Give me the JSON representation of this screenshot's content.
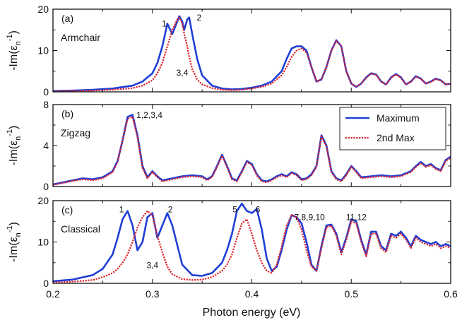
{
  "chart_data": {
    "type": "line",
    "xlabel": "Photon energy (eV)",
    "xlim": [
      0.2,
      0.6
    ],
    "xticks": [
      0.2,
      0.3,
      0.4,
      0.5,
      0.6
    ],
    "xtick_labels": [
      "0.2",
      "0.3",
      "0.4",
      "0.5",
      "0.6"
    ],
    "ylabel_prefix": "-Im(ε",
    "ylabel_sub": "n",
    "ylabel_sup": "-1",
    "ylabel_suffix": ")",
    "legend": {
      "position": "middle-right",
      "entries": [
        {
          "name": "Maximum",
          "color": "#1f3fd6",
          "style": "solid"
        },
        {
          "name": "2nd Max",
          "color": "#e0202a",
          "style": "dotted"
        }
      ]
    },
    "panels": [
      {
        "id": "a",
        "tag": "(a)",
        "name": "Armchair",
        "ylim": [
          0,
          20
        ],
        "yticks": [
          0,
          10,
          20
        ],
        "ytick_labels": [
          "0",
          "10",
          "20"
        ],
        "annotations": [
          {
            "text": "1",
            "x": 0.312,
            "y": 15.8
          },
          {
            "text": "2",
            "x": 0.347,
            "y": 17.3
          },
          {
            "text": "3,4",
            "x": 0.33,
            "y": 3.9
          }
        ],
        "series": [
          {
            "name": "Maximum",
            "x": [
              0.2,
              0.22,
              0.24,
              0.26,
              0.28,
              0.29,
              0.3,
              0.305,
              0.31,
              0.315,
              0.32,
              0.325,
              0.327,
              0.33,
              0.332,
              0.335,
              0.337,
              0.34,
              0.345,
              0.35,
              0.36,
              0.37,
              0.38,
              0.39,
              0.4,
              0.41,
              0.42,
              0.43,
              0.435,
              0.44,
              0.445,
              0.45,
              0.455,
              0.46,
              0.465,
              0.47,
              0.475,
              0.48,
              0.485,
              0.49,
              0.495,
              0.5,
              0.505,
              0.51,
              0.515,
              0.52,
              0.525,
              0.53,
              0.535,
              0.54,
              0.545,
              0.55,
              0.555,
              0.56,
              0.565,
              0.57,
              0.575,
              0.58,
              0.585,
              0.59,
              0.595,
              0.6
            ],
            "y": [
              0.2,
              0.3,
              0.5,
              0.8,
              1.5,
              2.5,
              4.5,
              7.0,
              11.0,
              16.5,
              14.0,
              17.0,
              18.3,
              17.0,
              15.0,
              17.5,
              18.0,
              14.0,
              8.0,
              4.0,
              1.5,
              0.8,
              0.6,
              0.7,
              1.0,
              1.5,
              2.5,
              5.0,
              8.0,
              10.5,
              11.0,
              11.0,
              10.0,
              6.0,
              2.5,
              3.0,
              6.0,
              10.0,
              12.5,
              11.0,
              5.0,
              2.0,
              1.2,
              2.0,
              3.5,
              4.5,
              4.2,
              2.5,
              1.8,
              3.5,
              4.3,
              3.5,
              1.8,
              2.5,
              3.8,
              3.2,
              2.0,
              2.5,
              3.2,
              2.8,
              1.8,
              2.0
            ]
          },
          {
            "name": "2nd Max",
            "x": [
              0.2,
              0.22,
              0.24,
              0.26,
              0.28,
              0.29,
              0.3,
              0.305,
              0.31,
              0.315,
              0.32,
              0.325,
              0.327,
              0.33,
              0.332,
              0.335,
              0.337,
              0.34,
              0.345,
              0.35,
              0.36,
              0.37,
              0.38,
              0.39,
              0.4,
              0.41,
              0.42,
              0.43,
              0.435,
              0.44,
              0.445,
              0.45,
              0.455,
              0.46,
              0.465,
              0.47,
              0.475,
              0.48,
              0.485,
              0.49,
              0.495,
              0.5,
              0.505,
              0.51,
              0.515,
              0.52,
              0.525,
              0.53,
              0.535,
              0.54,
              0.545,
              0.55,
              0.555,
              0.56,
              0.565,
              0.57,
              0.575,
              0.58,
              0.585,
              0.59,
              0.595,
              0.6
            ],
            "y": [
              0.1,
              0.2,
              0.3,
              0.5,
              0.9,
              1.5,
              2.8,
              4.5,
              7.0,
              11.0,
              15.0,
              17.5,
              18.0,
              16.5,
              14.0,
              11.0,
              8.5,
              5.5,
              3.0,
              1.8,
              0.9,
              0.5,
              0.4,
              0.5,
              0.8,
              1.2,
              2.0,
              4.0,
              6.0,
              8.5,
              10.0,
              10.5,
              9.5,
              6.0,
              2.5,
              3.0,
              6.0,
              10.0,
              12.3,
              11.0,
              5.0,
              2.0,
              1.2,
              2.0,
              3.4,
              4.4,
              4.1,
              2.5,
              1.8,
              3.4,
              4.2,
              3.4,
              1.8,
              2.4,
              3.7,
              3.1,
              2.0,
              2.4,
              3.1,
              2.7,
              1.8,
              1.9
            ]
          }
        ]
      },
      {
        "id": "b",
        "tag": "(b)",
        "name": "Zigzag",
        "ylim": [
          0,
          8
        ],
        "yticks": [
          0,
          4,
          8
        ],
        "ytick_labels": [
          "0",
          "4",
          "8"
        ],
        "annotations": [
          {
            "text": "1,2,3,4",
            "x": 0.297,
            "y": 6.7
          }
        ],
        "series": [
          {
            "name": "Maximum",
            "x": [
              0.2,
              0.21,
              0.22,
              0.23,
              0.24,
              0.25,
              0.26,
              0.265,
              0.27,
              0.275,
              0.28,
              0.285,
              0.29,
              0.295,
              0.3,
              0.305,
              0.31,
              0.32,
              0.33,
              0.34,
              0.35,
              0.355,
              0.36,
              0.365,
              0.37,
              0.375,
              0.38,
              0.385,
              0.39,
              0.395,
              0.4,
              0.405,
              0.41,
              0.415,
              0.42,
              0.425,
              0.43,
              0.435,
              0.44,
              0.445,
              0.45,
              0.455,
              0.46,
              0.465,
              0.47,
              0.475,
              0.48,
              0.485,
              0.49,
              0.495,
              0.5,
              0.505,
              0.51,
              0.52,
              0.53,
              0.54,
              0.55,
              0.56,
              0.565,
              0.57,
              0.575,
              0.58,
              0.585,
              0.59,
              0.595,
              0.6
            ],
            "y": [
              0.2,
              0.4,
              0.6,
              0.8,
              0.7,
              0.9,
              1.5,
              2.5,
              4.5,
              6.8,
              7.0,
              5.0,
              2.0,
              0.9,
              1.5,
              1.0,
              0.6,
              0.8,
              1.0,
              1.1,
              1.0,
              0.7,
              1.0,
              2.0,
              3.1,
              2.0,
              0.8,
              0.6,
              1.5,
              2.5,
              2.2,
              1.2,
              0.6,
              0.5,
              0.7,
              1.0,
              1.2,
              1.0,
              1.4,
              1.2,
              0.7,
              0.8,
              1.2,
              2.0,
              5.0,
              4.0,
              1.5,
              0.8,
              0.6,
              1.2,
              2.0,
              1.5,
              0.9,
              1.0,
              1.1,
              1.0,
              1.1,
              1.5,
              2.0,
              2.4,
              2.0,
              2.2,
              1.8,
              1.6,
              2.6,
              2.9
            ]
          },
          {
            "name": "2nd Max",
            "x": [
              0.2,
              0.21,
              0.22,
              0.23,
              0.24,
              0.25,
              0.26,
              0.265,
              0.27,
              0.275,
              0.28,
              0.285,
              0.29,
              0.295,
              0.3,
              0.305,
              0.31,
              0.32,
              0.33,
              0.34,
              0.35,
              0.355,
              0.36,
              0.365,
              0.37,
              0.375,
              0.38,
              0.385,
              0.39,
              0.395,
              0.4,
              0.405,
              0.41,
              0.415,
              0.42,
              0.425,
              0.43,
              0.435,
              0.44,
              0.445,
              0.45,
              0.455,
              0.46,
              0.465,
              0.47,
              0.475,
              0.48,
              0.485,
              0.49,
              0.495,
              0.5,
              0.505,
              0.51,
              0.52,
              0.53,
              0.54,
              0.55,
              0.56,
              0.565,
              0.57,
              0.575,
              0.58,
              0.585,
              0.59,
              0.595,
              0.6
            ],
            "y": [
              0.15,
              0.35,
              0.55,
              0.7,
              0.6,
              0.8,
              1.4,
              2.4,
              4.5,
              6.6,
              6.8,
              4.8,
              1.8,
              0.8,
              1.4,
              0.9,
              0.5,
              0.7,
              0.9,
              1.0,
              0.9,
              0.6,
              0.9,
              1.9,
              3.0,
              1.9,
              0.7,
              0.5,
              1.4,
              2.4,
              2.1,
              1.1,
              0.5,
              0.4,
              0.6,
              0.9,
              1.1,
              0.9,
              1.3,
              1.1,
              0.6,
              0.7,
              1.1,
              1.9,
              4.9,
              3.9,
              1.4,
              0.7,
              0.5,
              1.1,
              1.9,
              1.4,
              0.8,
              0.9,
              1.0,
              0.9,
              1.0,
              1.4,
              1.9,
              2.3,
              1.9,
              2.1,
              1.7,
              1.5,
              2.5,
              2.8
            ]
          }
        ]
      },
      {
        "id": "c",
        "tag": "(c)",
        "name": "Classical",
        "ylim": [
          0,
          20
        ],
        "yticks": [
          0,
          10,
          20
        ],
        "ytick_labels": [
          "0",
          "10",
          "20"
        ],
        "annotations": [
          {
            "text": "1",
            "x": 0.269,
            "y": 17.2
          },
          {
            "text": "2",
            "x": 0.318,
            "y": 17.2
          },
          {
            "text": "3,4",
            "x": 0.3,
            "y": 3.7
          },
          {
            "text": "5",
            "x": 0.383,
            "y": 17.2
          },
          {
            "text": "6",
            "x": 0.406,
            "y": 17.2
          },
          {
            "text": "7,8,9,10",
            "x": 0.458,
            "y": 15.3
          },
          {
            "text": "11,12",
            "x": 0.505,
            "y": 15.3
          }
        ],
        "series": [
          {
            "name": "Maximum",
            "x": [
              0.2,
              0.22,
              0.24,
              0.25,
              0.26,
              0.265,
              0.27,
              0.275,
              0.28,
              0.285,
              0.29,
              0.295,
              0.3,
              0.305,
              0.31,
              0.315,
              0.32,
              0.33,
              0.34,
              0.35,
              0.36,
              0.37,
              0.375,
              0.38,
              0.385,
              0.39,
              0.395,
              0.4,
              0.405,
              0.41,
              0.415,
              0.42,
              0.425,
              0.43,
              0.435,
              0.44,
              0.445,
              0.45,
              0.455,
              0.46,
              0.465,
              0.47,
              0.475,
              0.48,
              0.485,
              0.49,
              0.495,
              0.5,
              0.505,
              0.51,
              0.515,
              0.52,
              0.525,
              0.53,
              0.535,
              0.54,
              0.545,
              0.55,
              0.555,
              0.56,
              0.565,
              0.57,
              0.575,
              0.58,
              0.585,
              0.59,
              0.595,
              0.6
            ],
            "y": [
              0.5,
              0.9,
              2.0,
              3.5,
              7.0,
              11.0,
              15.5,
              17.5,
              14.0,
              8.0,
              10.0,
              16.0,
              17.0,
              11.0,
              14.0,
              17.0,
              14.0,
              4.5,
              2.0,
              1.8,
              2.5,
              5.0,
              8.0,
              12.0,
              17.5,
              19.3,
              17.5,
              17.0,
              18.0,
              13.0,
              6.0,
              3.0,
              4.0,
              8.0,
              13.0,
              16.5,
              16.0,
              14.5,
              10.0,
              4.5,
              3.0,
              9.0,
              14.0,
              14.2,
              12.0,
              7.5,
              11.0,
              15.5,
              15.0,
              10.5,
              7.0,
              12.5,
              12.5,
              9.0,
              8.0,
              12.0,
              11.5,
              12.5,
              11.0,
              9.0,
              11.5,
              10.5,
              10.0,
              9.5,
              10.0,
              9.0,
              9.5,
              9.0
            ]
          },
          {
            "name": "2nd Max",
            "x": [
              0.2,
              0.22,
              0.24,
              0.25,
              0.26,
              0.265,
              0.27,
              0.275,
              0.28,
              0.285,
              0.29,
              0.295,
              0.3,
              0.305,
              0.31,
              0.315,
              0.32,
              0.33,
              0.34,
              0.35,
              0.36,
              0.37,
              0.375,
              0.38,
              0.385,
              0.39,
              0.395,
              0.4,
              0.405,
              0.41,
              0.415,
              0.42,
              0.425,
              0.43,
              0.435,
              0.44,
              0.445,
              0.45,
              0.455,
              0.46,
              0.465,
              0.47,
              0.475,
              0.48,
              0.485,
              0.49,
              0.495,
              0.5,
              0.505,
              0.51,
              0.515,
              0.52,
              0.525,
              0.53,
              0.535,
              0.54,
              0.545,
              0.55,
              0.555,
              0.56,
              0.565,
              0.57,
              0.575,
              0.58,
              0.585,
              0.59,
              0.595,
              0.6
            ],
            "y": [
              0.2,
              0.4,
              0.8,
              1.5,
              2.5,
              3.5,
              5.0,
              7.0,
              10.0,
              13.5,
              16.0,
              17.5,
              16.5,
              11.5,
              7.5,
              4.0,
              2.2,
              1.0,
              0.8,
              0.9,
              1.5,
              3.0,
              4.5,
              7.0,
              11.0,
              14.5,
              15.5,
              12.0,
              8.0,
              5.0,
              3.0,
              2.5,
              4.5,
              9.0,
              14.0,
              16.5,
              16.0,
              13.0,
              8.0,
              4.0,
              3.0,
              8.5,
              13.5,
              14.0,
              11.5,
              7.0,
              10.5,
              15.0,
              14.5,
              10.0,
              6.5,
              12.0,
              12.0,
              8.5,
              7.5,
              11.5,
              11.0,
              12.0,
              10.5,
              8.5,
              11.0,
              10.0,
              9.5,
              9.0,
              9.5,
              8.5,
              9.0,
              8.5
            ]
          }
        ]
      }
    ]
  }
}
